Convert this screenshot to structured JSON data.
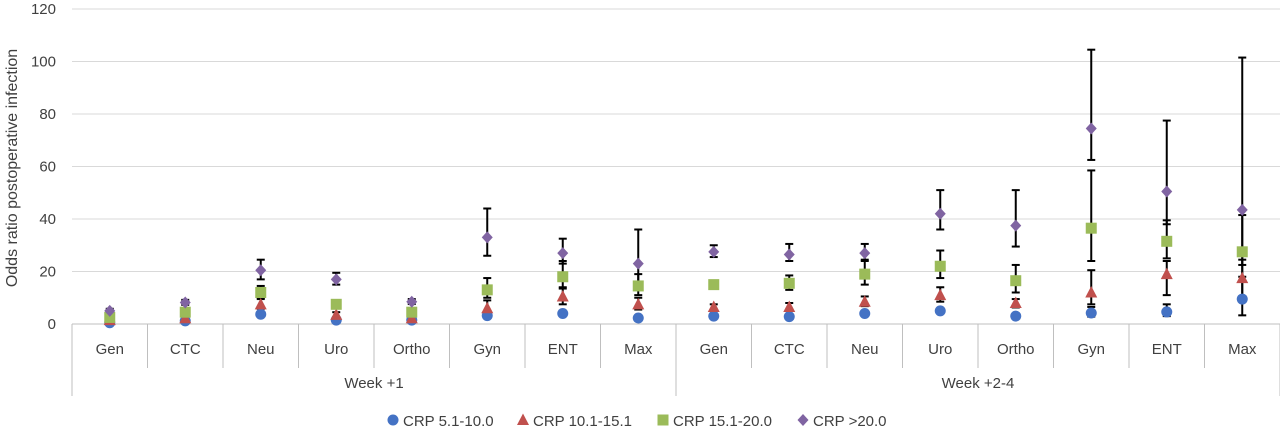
{
  "chart_data": {
    "type": "scatter",
    "title": "",
    "ylabel": "Odds ratio postoperative infection",
    "xlabel": "",
    "ylim": [
      0,
      120
    ],
    "yticks": [
      0,
      20,
      40,
      60,
      80,
      100,
      120
    ],
    "grid": "horizontal",
    "legend_position": "bottom",
    "groups": [
      {
        "label": "Week +1",
        "categories": [
          "Gen",
          "CTC",
          "Neu",
          "Uro",
          "Ortho",
          "Gyn",
          "ENT",
          "Max"
        ]
      },
      {
        "label": "Week +2-4",
        "categories": [
          "Gen",
          "CTC",
          "Neu",
          "Uro",
          "Ortho",
          "Gyn",
          "ENT",
          "Max"
        ]
      }
    ],
    "series": [
      {
        "name": "CRP 5.1-10.0",
        "color": "#4472c4",
        "marker": "circle",
        "values": [
          0.5,
          1.2,
          3.7,
          1.5,
          1.5,
          3.2,
          4.0,
          2.3,
          3.0,
          2.8,
          4.0,
          5.0,
          3.0,
          4.2,
          4.6,
          9.5
        ],
        "error_high": [
          0.7,
          1.5,
          4.5,
          2.0,
          1.8,
          3.8,
          5.0,
          2.8,
          3.4,
          3.2,
          4.8,
          6.0,
          3.4,
          6.5,
          7.5,
          16.0
        ],
        "error_low": [
          0.3,
          0.9,
          3.0,
          1.1,
          1.2,
          2.6,
          3.2,
          1.8,
          2.6,
          2.4,
          3.3,
          4.2,
          2.6,
          2.8,
          3.0,
          3.3
        ]
      },
      {
        "name": "CRP 10.1-15.1",
        "color": "#c0504d",
        "marker": "triangle",
        "values": [
          1.5,
          2.2,
          7.5,
          3.5,
          2.2,
          6.0,
          10.5,
          7.5,
          6.5,
          6.5,
          8.5,
          11.0,
          8.0,
          12.0,
          19.0,
          17.5
        ],
        "error_high": [
          2.0,
          2.8,
          9.5,
          4.5,
          2.8,
          9.0,
          14.0,
          10.0,
          7.5,
          8.0,
          10.5,
          14.0,
          9.5,
          20.5,
          24.0,
          24.5
        ],
        "error_low": [
          1.1,
          1.6,
          5.8,
          2.6,
          1.6,
          4.0,
          7.5,
          5.5,
          5.5,
          5.0,
          6.8,
          8.5,
          6.3,
          7.5,
          11.0,
          9.0
        ]
      },
      {
        "name": "CRP 15.1-20.0",
        "color": "#9bbb59",
        "marker": "square",
        "values": [
          2.5,
          4.5,
          12.0,
          7.5,
          4.5,
          13.0,
          18.0,
          14.5,
          15.0,
          15.5,
          19.0,
          22.0,
          16.5,
          36.5,
          31.5,
          27.5
        ],
        "error_high": [
          3.2,
          5.5,
          14.5,
          9.0,
          5.5,
          17.5,
          24.0,
          19.0,
          16.5,
          18.5,
          24.0,
          28.0,
          22.5,
          58.5,
          39.5,
          41.5
        ],
        "error_low": [
          2.0,
          3.7,
          10.0,
          6.2,
          3.7,
          10.0,
          13.5,
          11.0,
          13.5,
          13.0,
          15.0,
          17.5,
          12.0,
          24.0,
          25.0,
          18.0
        ]
      },
      {
        "name": "CRP >20.0",
        "color": "#8064a2",
        "marker": "diamond",
        "values": [
          5.0,
          8.2,
          20.5,
          17.0,
          8.5,
          33.0,
          27.0,
          23.0,
          27.5,
          26.5,
          27.0,
          42.0,
          37.5,
          74.5,
          50.5,
          43.5
        ],
        "error_high": [
          5.8,
          9.2,
          24.5,
          19.5,
          9.5,
          44.0,
          32.5,
          36.0,
          30.0,
          30.5,
          30.5,
          51.0,
          51.0,
          104.5,
          77.5,
          101.5
        ],
        "error_low": [
          4.2,
          7.3,
          17.0,
          15.0,
          7.6,
          26.0,
          23.0,
          15.5,
          25.5,
          24.0,
          24.5,
          36.0,
          29.5,
          62.5,
          38.0,
          22.5
        ]
      }
    ]
  }
}
